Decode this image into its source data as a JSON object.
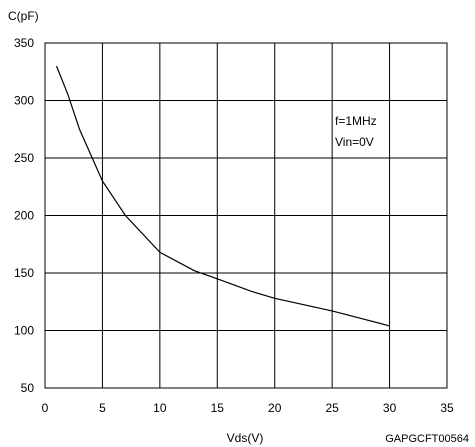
{
  "chart_data": {
    "type": "line",
    "title": "",
    "xlabel": "Vds(V)",
    "ylabel": "C(pF)",
    "xlim": [
      0,
      35
    ],
    "ylim": [
      50,
      350
    ],
    "xticks": [
      0,
      5,
      10,
      15,
      20,
      25,
      30,
      35
    ],
    "yticks": [
      50,
      100,
      150,
      200,
      250,
      300,
      350
    ],
    "grid": true,
    "legend": "none",
    "annotations": [
      "f=1MHz",
      "Vin=0V"
    ],
    "footer_code": "GAPGCFT00564",
    "series": [
      {
        "x": [
          1,
          2,
          3,
          5,
          7,
          10,
          13,
          15,
          18,
          20,
          25,
          30
        ],
        "y": [
          330,
          305,
          275,
          230,
          200,
          168,
          152,
          145,
          134,
          128,
          117,
          104
        ]
      }
    ]
  },
  "colors": {
    "line": "#000000",
    "grid": "#000000",
    "background": "#ffffff"
  }
}
